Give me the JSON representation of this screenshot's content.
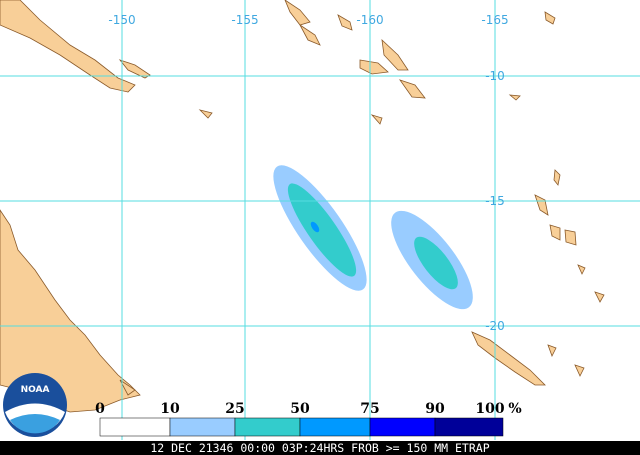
{
  "map": {
    "lon_labels": [
      "-150",
      "-155",
      "-160",
      "-165"
    ],
    "lat_labels": [
      "-10",
      "-15",
      "-20"
    ]
  },
  "legend": {
    "ticks": [
      "0",
      "10",
      "25",
      "50",
      "75",
      "90",
      "100"
    ],
    "unit": "%",
    "colors": [
      "#ffffff",
      "#99ccff",
      "#33cccc",
      "#0099ff",
      "#0000ff",
      "#000099"
    ]
  },
  "logo": "NOAA",
  "footer": "12 DEC 21346 00:00 03P:24HRS FROB >= 150 MM ETRAP"
}
